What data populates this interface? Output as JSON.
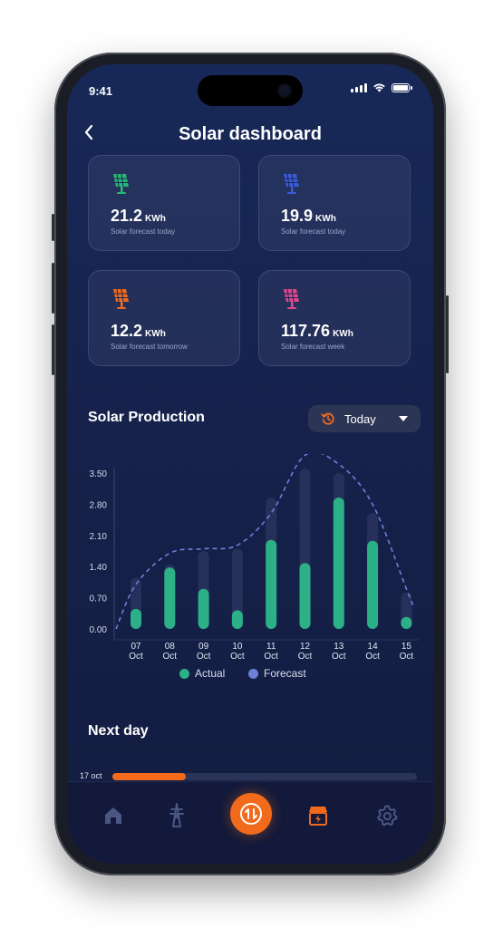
{
  "status": {
    "time": "9:41"
  },
  "header": {
    "back_icon": "chevron-left-icon",
    "title": "Solar dashboard"
  },
  "cards": [
    {
      "value": "21.2",
      "unit": "KWh",
      "label": "Solar forecast today",
      "color": "#2bb673",
      "icon": "solar-panel-icon"
    },
    {
      "value": "19.9",
      "unit": "KWh",
      "label": "Solar forecast today",
      "color": "#3b5bd9",
      "icon": "solar-panel-icon"
    },
    {
      "value": "12.2",
      "unit": "KWh",
      "label": "Solar forecast tomorrow",
      "color": "#f26a1b",
      "icon": "solar-panel-icon"
    },
    {
      "value": "117.76",
      "unit": "KWh",
      "label": "Solar forecast week",
      "color": "#e2478c",
      "icon": "solar-panel-icon"
    }
  ],
  "production": {
    "title": "Solar Production",
    "dropdown": {
      "icon": "history-icon",
      "selected": "Today"
    }
  },
  "chart_data": {
    "type": "bar",
    "categories": [
      "07 Oct",
      "08 Oct",
      "09 Oct",
      "10 Oct",
      "11 Oct",
      "12 Oct",
      "13 Oct",
      "14 Oct",
      "15 Oct"
    ],
    "category_lines": [
      [
        "07",
        "Oct"
      ],
      [
        "08",
        "Oct"
      ],
      [
        "09",
        "Oct"
      ],
      [
        "10",
        "Oct"
      ],
      [
        "11",
        "Oct"
      ],
      [
        "12",
        "Oct"
      ],
      [
        "13",
        "Oct"
      ],
      [
        "14",
        "Oct"
      ],
      [
        "15",
        "Oct"
      ]
    ],
    "y_ticks": [
      "0.00",
      "0.70",
      "1.40",
      "2.10",
      "2.80",
      "3.50"
    ],
    "ylim": [
      0,
      3.5
    ],
    "series": [
      {
        "name": "Actual",
        "color": "#2bb087",
        "values": [
          0.45,
          1.38,
          0.9,
          0.42,
          2.0,
          1.48,
          2.95,
          1.98,
          0.27
        ]
      },
      {
        "name": "Forecast",
        "color": "#6d7fd8",
        "values": [
          1.15,
          1.45,
          1.75,
          1.8,
          2.95,
          3.6,
          3.5,
          2.6,
          0.82
        ]
      }
    ],
    "forecast_curve": [
      1.0,
      1.7,
      1.8,
      1.88,
      2.6,
      3.9,
      3.7,
      2.8,
      0.9
    ]
  },
  "legend": [
    {
      "label": "Actual",
      "color": "#2bb087"
    },
    {
      "label": "Forecast",
      "color": "#6d7fd8"
    }
  ],
  "next_day": {
    "title": "Next day",
    "rows": [
      {
        "date": "17 oct",
        "progress": 0.24
      }
    ]
  },
  "accent": "#f26a1b",
  "nav": {
    "items": [
      "home-icon",
      "power-tower-icon",
      "exchange-icon",
      "solar-store-icon",
      "gear-icon"
    ]
  }
}
